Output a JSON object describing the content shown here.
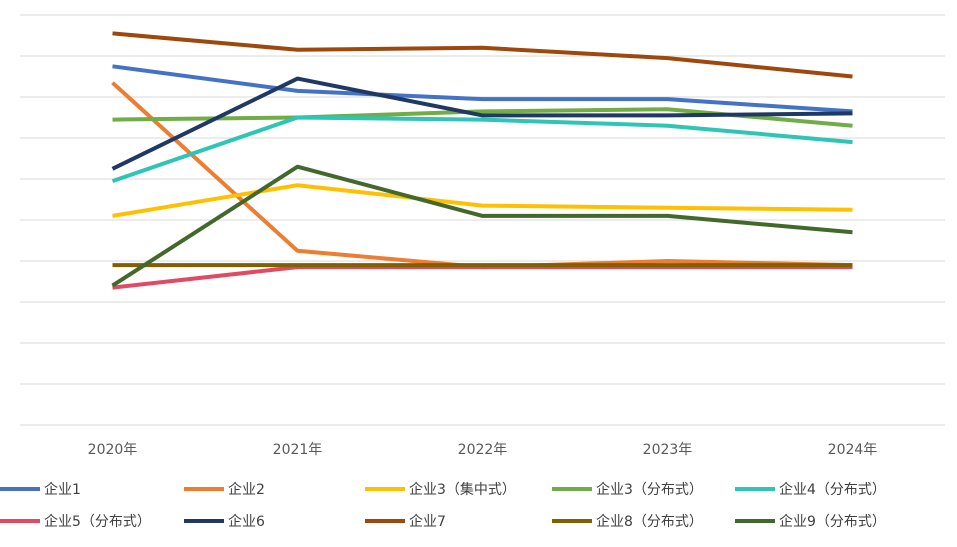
{
  "chart_data": {
    "type": "line",
    "title": "",
    "xlabel": "",
    "ylabel": "",
    "categories": [
      "2020年",
      "2021年",
      "2022年",
      "2023年",
      "2024年"
    ],
    "ylim": [
      0,
      100
    ],
    "grid": true,
    "y_tick_labels_shown": false,
    "legend_position": "bottom",
    "series": [
      {
        "name": "企业1",
        "color": "#4472C4",
        "values": [
          87.5,
          81.5,
          79.5,
          79.5,
          76.5
        ]
      },
      {
        "name": "企业2",
        "color": "#ED7D31",
        "values": [
          83.5,
          42.5,
          38.5,
          40.0,
          39.0
        ]
      },
      {
        "name": "企业3（集中式）",
        "color": "#FFC000",
        "values": [
          51.0,
          58.5,
          53.5,
          53.0,
          52.5
        ]
      },
      {
        "name": "企业3（分布式）",
        "color": "#70AD47",
        "values": [
          74.5,
          75.0,
          76.5,
          77.0,
          73.0
        ]
      },
      {
        "name": "企业4（分布式）",
        "color": "#2EC4B6",
        "values": [
          59.5,
          75.0,
          74.5,
          73.0,
          69.0
        ]
      },
      {
        "name": "企业5（分布式）",
        "color": "#E04A64",
        "values": [
          33.5,
          38.5,
          38.5,
          38.5,
          38.5
        ]
      },
      {
        "name": "企业6",
        "color": "#203864",
        "values": [
          62.5,
          84.5,
          75.5,
          75.5,
          76.0
        ]
      },
      {
        "name": "企业7",
        "color": "#9E480E",
        "values": [
          95.5,
          91.5,
          92.0,
          89.5,
          85.0
        ]
      },
      {
        "name": "企业8（分布式）",
        "color": "#806000",
        "values": [
          39.0,
          39.0,
          39.0,
          39.0,
          39.0
        ]
      },
      {
        "name": "企业9（分布式）",
        "color": "#43682B",
        "values": [
          34.0,
          63.0,
          51.0,
          51.0,
          47.0
        ]
      }
    ]
  }
}
